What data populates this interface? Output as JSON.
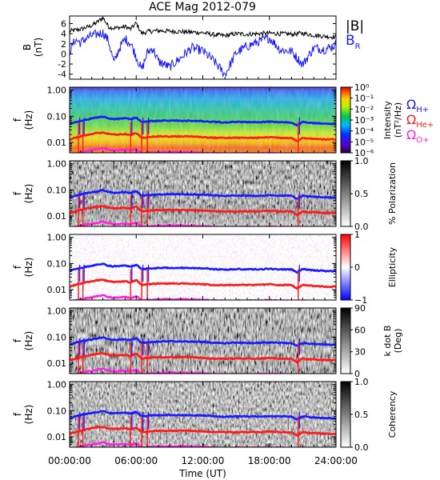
{
  "title": "ACE Mag 2012-079",
  "colors": {
    "B_total": "#000000",
    "B_R": "#1a1aff",
    "omega_H": "#1a1aff",
    "omega_He": "#ff1a1a",
    "omega_O": "#ff22dd"
  },
  "x_axis": {
    "label": "Time (UT)",
    "ticks": [
      "00:00:00",
      "06:00:00",
      "12:00:00",
      "18:00:00",
      "24:00:00"
    ],
    "tick_hours": [
      0,
      6,
      12,
      18,
      24
    ],
    "range_hours": [
      0,
      24
    ]
  },
  "freq_ticks": [
    "1.00",
    "0.10",
    "0.01"
  ],
  "freq_tick_values": [
    1.0,
    0.1,
    0.01
  ],
  "freq_range_hz": [
    0.004,
    1.3
  ],
  "legend": [
    {
      "symbol": "|B|",
      "sub": "",
      "color": "#000000"
    },
    {
      "symbol": "B",
      "sub": "R",
      "color": "#1a1aff"
    }
  ],
  "gyro_legend": [
    {
      "symbol": "Ω",
      "sub": "H+",
      "color": "#1a1aff"
    },
    {
      "symbol": "Ω",
      "sub": "He+",
      "color": "#ff1a1a"
    },
    {
      "symbol": "Ω",
      "sub": "O+",
      "color": "#ff22dd"
    }
  ],
  "chart_data": [
    {
      "type": "line",
      "panel": "B",
      "ylabel": [
        "B",
        "(nT)"
      ],
      "ylim": [
        -5,
        7.5
      ],
      "yticks": [
        -4,
        -2,
        0,
        2,
        4,
        6
      ],
      "series": [
        {
          "name": "|B|",
          "x": [
            0,
            1,
            2,
            2.5,
            3,
            3.5,
            4,
            4.5,
            5,
            5.5,
            6,
            6.5,
            7,
            8,
            9,
            10,
            11,
            12,
            13,
            14,
            15,
            16,
            17,
            18,
            19,
            20,
            21,
            22,
            23,
            24
          ],
          "values": [
            4.5,
            4.9,
            5.6,
            6.3,
            7.2,
            5.4,
            5.1,
            5.2,
            5.4,
            4.9,
            6.1,
            4.0,
            4.4,
            4.6,
            4.5,
            4.4,
            4.3,
            4.2,
            3.8,
            3.6,
            4.0,
            3.9,
            4.0,
            4.1,
            4.0,
            3.9,
            4.1,
            3.7,
            3.5,
            3.3
          ]
        },
        {
          "name": "B_R",
          "x": [
            0,
            0.5,
            1,
            1.5,
            2,
            2.5,
            3,
            3.5,
            4,
            4.5,
            5,
            5.5,
            6,
            6.5,
            7,
            7.5,
            8,
            9,
            10,
            11,
            12,
            13,
            14,
            15,
            16,
            17,
            18,
            19,
            20,
            21,
            22,
            23,
            24
          ],
          "values": [
            0.5,
            2.8,
            2.2,
            3.1,
            3.6,
            3.9,
            4.2,
            2.6,
            -1.8,
            1.2,
            3.0,
            2.1,
            -0.5,
            -3.2,
            0.3,
            1.1,
            -1.5,
            -2.6,
            -0.8,
            1.2,
            0.6,
            -1.4,
            -4.1,
            0.2,
            1.5,
            2.4,
            3.2,
            0.8,
            0.5,
            -2.1,
            1.2,
            0.9,
            1.8
          ]
        }
      ]
    },
    {
      "type": "heatmap",
      "panel": "Intensity",
      "ylabel": [
        "f",
        "(Hz)"
      ],
      "colorbar": {
        "label": [
          "Intensity",
          "(nT²/Hz)"
        ],
        "ticks": [
          "10⁰",
          "10⁻¹",
          "10⁻²",
          "10⁻³",
          "10⁻⁴",
          "10⁻⁵",
          "10⁻⁶"
        ],
        "range": [
          -6,
          0
        ],
        "scale": "log",
        "colormap": "rainbow"
      }
    },
    {
      "type": "heatmap",
      "panel": "Polarization",
      "ylabel": [
        "f",
        "(Hz)"
      ],
      "colorbar": {
        "label": [
          "% Polarization"
        ],
        "ticks": [
          "1.0",
          "0.5",
          "0.0"
        ],
        "range": [
          0,
          1
        ],
        "colormap": "gray"
      }
    },
    {
      "type": "heatmap",
      "panel": "Ellipticity",
      "ylabel": [
        "f",
        "(Hz)"
      ],
      "colorbar": {
        "label": [
          "Ellipticity"
        ],
        "ticks": [
          "1",
          "0",
          "−1"
        ],
        "range": [
          -1,
          1
        ],
        "colormap": "blue-white-red"
      }
    },
    {
      "type": "heatmap",
      "panel": "k dot B",
      "ylabel": [
        "f",
        "(Hz)"
      ],
      "colorbar": {
        "label": [
          "k dot B",
          "(Deg)"
        ],
        "ticks": [
          "90",
          "60",
          "30",
          "0"
        ],
        "range": [
          0,
          90
        ],
        "colormap": "gray"
      }
    },
    {
      "type": "heatmap",
      "panel": "Coherency",
      "ylabel": [
        "f",
        "(Hz)"
      ],
      "colorbar": {
        "label": [
          "Coherency"
        ],
        "ticks": [
          "1.0",
          "0.5",
          "0.0"
        ],
        "range": [
          0,
          1
        ],
        "colormap": "gray"
      }
    }
  ],
  "gyrofrequency_lines": {
    "x": [
      0,
      0.5,
      1,
      1.5,
      2,
      2.5,
      3,
      3.5,
      4,
      4.5,
      5,
      5.5,
      6,
      6.5,
      7,
      8,
      9,
      10,
      11,
      12,
      13,
      14,
      15,
      16,
      17,
      18,
      19,
      20,
      20.5,
      21,
      21.5,
      22,
      23,
      24
    ],
    "omega_H_hz": [
      0.05,
      0.06,
      0.068,
      0.075,
      0.082,
      0.09,
      0.097,
      0.082,
      0.078,
      0.08,
      0.083,
      0.076,
      0.09,
      0.06,
      0.064,
      0.067,
      0.069,
      0.068,
      0.067,
      0.066,
      0.061,
      0.058,
      0.061,
      0.06,
      0.06,
      0.062,
      0.06,
      0.059,
      0.045,
      0.061,
      0.057,
      0.055,
      0.052,
      0.05
    ],
    "omega_He_hz": [
      0.013,
      0.015,
      0.017,
      0.019,
      0.021,
      0.023,
      0.024,
      0.021,
      0.02,
      0.02,
      0.021,
      0.019,
      0.023,
      0.015,
      0.016,
      0.017,
      0.017,
      0.017,
      0.017,
      0.016,
      0.015,
      0.015,
      0.015,
      0.015,
      0.015,
      0.016,
      0.015,
      0.015,
      0.011,
      0.015,
      0.014,
      0.014,
      0.013,
      0.013
    ],
    "omega_O_hz": [
      0.0034,
      0.0038,
      0.0043,
      0.0047,
      0.0051,
      0.0056,
      0.0061,
      0.0052,
      0.0049,
      0.005,
      0.0052,
      0.0048,
      0.0056,
      0.0038,
      0.004,
      0.0042,
      0.0043,
      0.0043,
      0.0042,
      0.0041,
      0.0038,
      0.0037,
      0.0038,
      0.0038,
      0.0038,
      0.0039,
      0.0038,
      0.0037,
      0.003,
      0.0038,
      0.0036,
      0.0035,
      0.0033,
      0.0032
    ],
    "dropout_hours": [
      0.8,
      1.2,
      5.5,
      6.5,
      7.0,
      20.6
    ]
  }
}
